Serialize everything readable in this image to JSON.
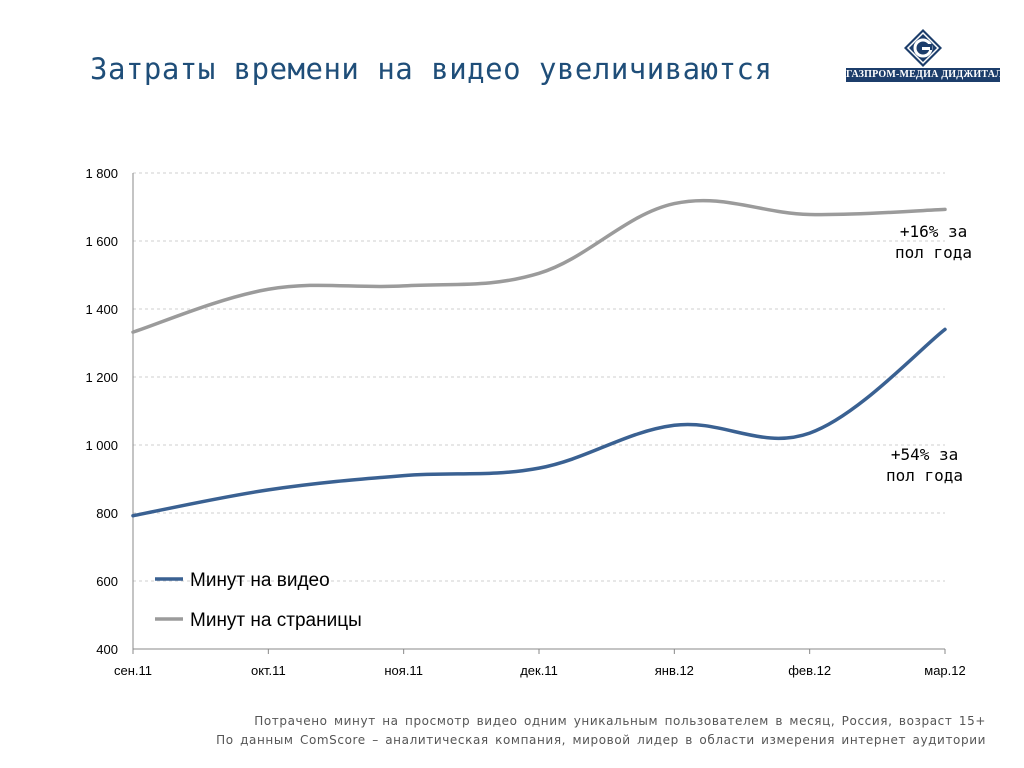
{
  "page": {
    "title": "Затраты времени на видео увеличиваются",
    "logo_text": "ГАЗПРОМ-МЕДИА ДИДЖИТАЛ",
    "footnote_line1": "Потрачено минут на просмотр видео одним уникальным пользователем в месяц, Россия, возраст 15+",
    "footnote_line2": "По данным ComScore – аналитическая компания, мировой лидер в области измерения интернет аудитории"
  },
  "colors": {
    "title": "#1f4e79",
    "series_video": "#3a6192",
    "series_pages": "#9b9b9b",
    "logo_blue": "#1c3d6b"
  },
  "annotations": {
    "pages_line1": "+16% за",
    "pages_line2": "пол года",
    "video_line1": "+54% за",
    "video_line2": "пол года"
  },
  "chart_data": {
    "type": "line",
    "categories": [
      "сен.11",
      "окт.11",
      "ноя.11",
      "дек.11",
      "янв.12",
      "фев.12",
      "мар.12"
    ],
    "ylim": [
      400,
      1800
    ],
    "yticks": [
      400,
      600,
      800,
      1000,
      1200,
      1400,
      1600,
      1800
    ],
    "ytick_labels": [
      "400",
      "600",
      "800",
      "1 000",
      "1 200",
      "1 400",
      "1 600",
      "1 800"
    ],
    "grid": "horizontal-dashed",
    "legend_position": "bottom-left",
    "series": [
      {
        "name": "Минут на видео",
        "color": "#3a6192",
        "values": [
          792,
          868,
          910,
          932,
          1058,
          1035,
          1340
        ]
      },
      {
        "name": "Минут на страницы",
        "color": "#9b9b9b",
        "values": [
          1332,
          1458,
          1468,
          1505,
          1710,
          1678,
          1693
        ]
      }
    ]
  }
}
